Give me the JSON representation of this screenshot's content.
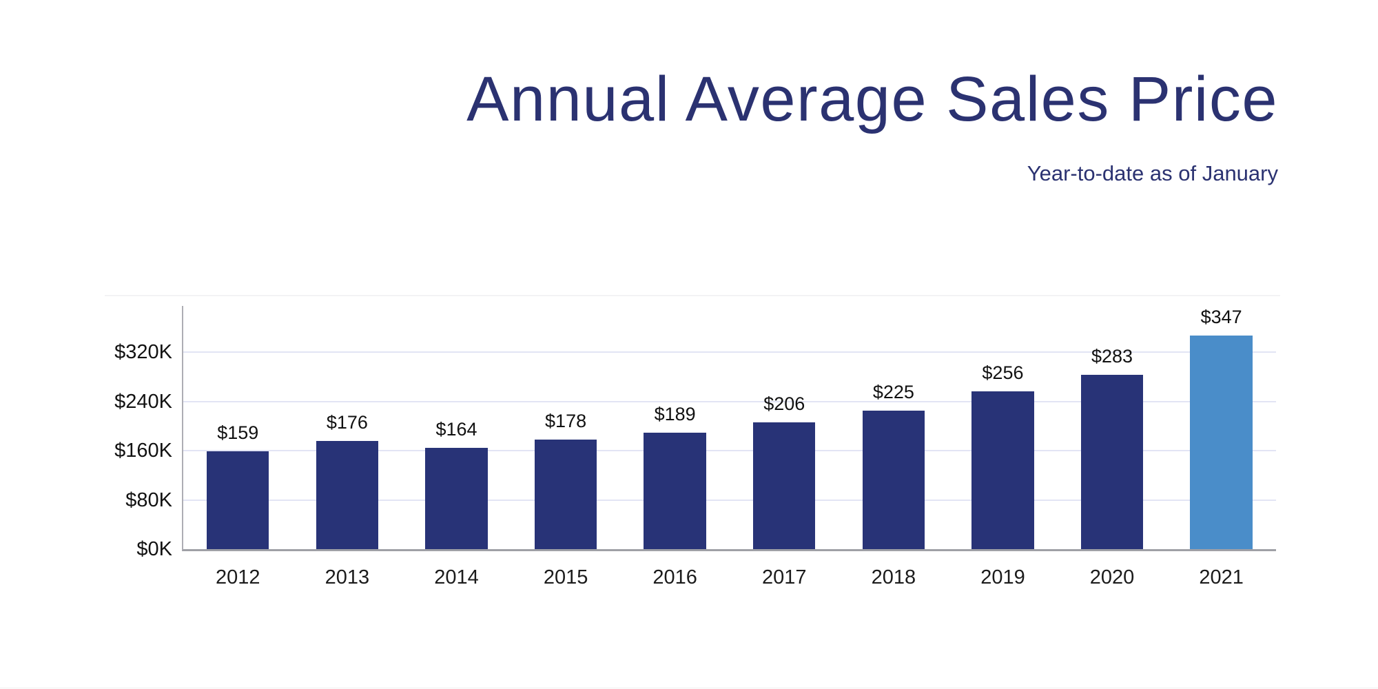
{
  "header": {
    "title": "Annual Average Sales Price",
    "subtitle": "Year-to-date as of January"
  },
  "chart_data": {
    "type": "bar",
    "title": "Annual Average Sales Price",
    "subtitle": "Year-to-date as of January",
    "categories": [
      "2012",
      "2013",
      "2014",
      "2015",
      "2016",
      "2017",
      "2018",
      "2019",
      "2020",
      "2021"
    ],
    "values": [
      159,
      176,
      164,
      178,
      189,
      206,
      225,
      256,
      283,
      347
    ],
    "value_labels": [
      "$159",
      "$176",
      "$164",
      "$178",
      "$189",
      "$206",
      "$225",
      "$256",
      "$283",
      "$347"
    ],
    "yticks": [
      {
        "value": 0,
        "label": "$0K"
      },
      {
        "value": 80,
        "label": "$80K"
      },
      {
        "value": 160,
        "label": "$160K"
      },
      {
        "value": 240,
        "label": "$240K"
      },
      {
        "value": 320,
        "label": "$320K"
      }
    ],
    "ylim": [
      0,
      395
    ],
    "xlabel": "",
    "ylabel": "",
    "grid": "horizontal",
    "legend": "none",
    "highlight_index": 9,
    "colors": {
      "bar": "#283377",
      "highlight_bar": "#4A8DC9",
      "title_text": "#2B3271",
      "gridline": "#E2E4F4",
      "axis": "#9FA0A6",
      "data_label": "#111111"
    }
  }
}
